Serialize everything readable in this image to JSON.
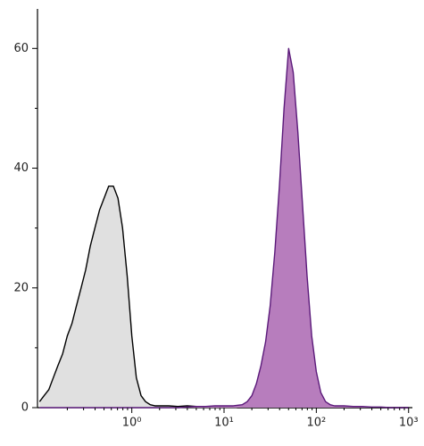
{
  "chart_data": {
    "type": "area",
    "xscale": "log",
    "x": [
      0.1,
      0.112,
      0.126,
      0.141,
      0.158,
      0.178,
      0.2,
      0.224,
      0.251,
      0.282,
      0.316,
      0.355,
      0.398,
      0.447,
      0.501,
      0.562,
      0.631,
      0.708,
      0.794,
      0.891,
      1,
      1.12,
      1.26,
      1.41,
      1.58,
      1.78,
      2,
      2.51,
      3.16,
      3.98,
      5.01,
      6.31,
      7.94,
      10,
      12.6,
      14.1,
      15.8,
      17.8,
      20,
      22.4,
      25.1,
      28.2,
      31.6,
      35.5,
      39.8,
      44.7,
      50.1,
      56.2,
      63.1,
      70.8,
      79.4,
      89.1,
      100,
      112,
      126,
      141,
      158,
      200,
      251,
      316,
      398,
      501,
      631,
      794,
      1000
    ],
    "series": [
      {
        "color": "#000000",
        "fill": "#e0e0e0",
        "values": [
          1,
          2,
          3,
          5,
          7,
          9,
          12,
          14,
          17,
          20,
          23,
          27,
          30,
          33,
          35,
          37,
          37,
          35,
          30,
          22,
          12,
          5,
          2,
          1,
          0.5,
          0.3,
          0.3,
          0.3,
          0.2,
          0.3,
          0.2,
          0.2,
          0.1,
          0.1,
          0.1,
          0,
          0,
          0,
          0,
          0,
          0,
          0,
          0,
          0,
          0,
          0,
          0,
          0,
          0,
          0,
          0,
          0,
          0,
          0,
          0,
          0,
          0,
          0,
          0,
          0,
          0,
          0,
          0,
          0,
          0
        ]
      },
      {
        "color": "#5b1a7a",
        "fill": "#b77dbd",
        "values": [
          0,
          0,
          0,
          0,
          0,
          0,
          0,
          0,
          0,
          0,
          0,
          0,
          0,
          0,
          0,
          0,
          0,
          0,
          0,
          0,
          0,
          0,
          0,
          0,
          0,
          0,
          0,
          0,
          0,
          0.1,
          0.2,
          0.2,
          0.3,
          0.3,
          0.3,
          0.4,
          0.5,
          1,
          2,
          4,
          7,
          11,
          17,
          26,
          37,
          50,
          60,
          56,
          46,
          34,
          22,
          12,
          6,
          2.5,
          1,
          0.5,
          0.3,
          0.3,
          0.2,
          0.2,
          0.1,
          0.1,
          0,
          0,
          0
        ]
      }
    ],
    "xlim": [
      0.095,
      1100
    ],
    "xticks": [
      {
        "value": 1,
        "label": "10⁰"
      },
      {
        "value": 10,
        "label": "10¹"
      },
      {
        "value": 100,
        "label": "10²"
      },
      {
        "value": 1000,
        "label": "10³"
      }
    ],
    "xminorticks": [
      0.2,
      0.3,
      0.4,
      0.5,
      0.6,
      0.7,
      0.8,
      0.9,
      2,
      3,
      4,
      5,
      6,
      7,
      8,
      9,
      20,
      30,
      40,
      50,
      60,
      70,
      80,
      90,
      200,
      300,
      400,
      500,
      600,
      700,
      800,
      900
    ],
    "ylim": [
      0,
      66.6
    ],
    "yticks": [
      0,
      20,
      40,
      60
    ],
    "yminorticks": [
      10,
      30,
      50
    ]
  }
}
